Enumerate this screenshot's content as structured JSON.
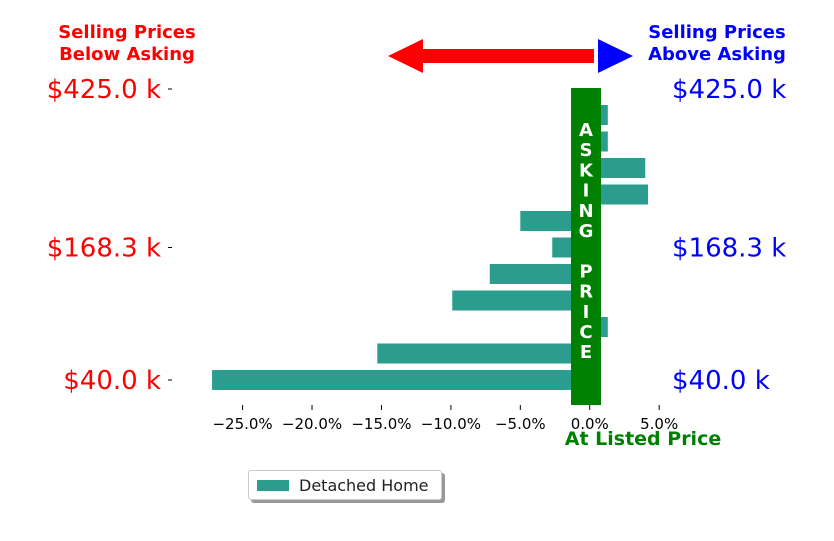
{
  "header": {
    "left_label": [
      "Selling Prices",
      "Below Asking"
    ],
    "right_label": [
      "Selling Prices",
      "Above Asking"
    ]
  },
  "colors": {
    "below": "#ff0000",
    "above": "#0000ff",
    "asking": "#008000",
    "bar": "#2a9d8f"
  },
  "chart_data": {
    "type": "bar",
    "orientation": "horizontal",
    "series": [
      {
        "name": "Detached Home",
        "values": [
          1.3,
          1.3,
          4.0,
          4.2,
          -5.0,
          -2.7,
          -7.2,
          -9.9,
          1.3,
          -15.3,
          -27.2
        ]
      }
    ],
    "xticks": [
      -25,
      -20,
      -15,
      -10,
      -5,
      0,
      5
    ],
    "xtick_labels": [
      "−25.0%",
      "−20.0%",
      "−15.0%",
      "−10.0%",
      "−5.0%",
      "0.0%",
      "5.0%"
    ],
    "xlim": [
      -28.5,
      6.5
    ],
    "xlabel": "At Listed Price",
    "yticks": [
      {
        "label": "$425.0 k",
        "bar_index": -1
      },
      {
        "label": "$168.3 k",
        "bar_index": 5
      },
      {
        "label": "$40.0 k",
        "bar_index": 10
      }
    ],
    "asking_band_text": "ASKING PRICE",
    "legend": "bottom-center"
  }
}
